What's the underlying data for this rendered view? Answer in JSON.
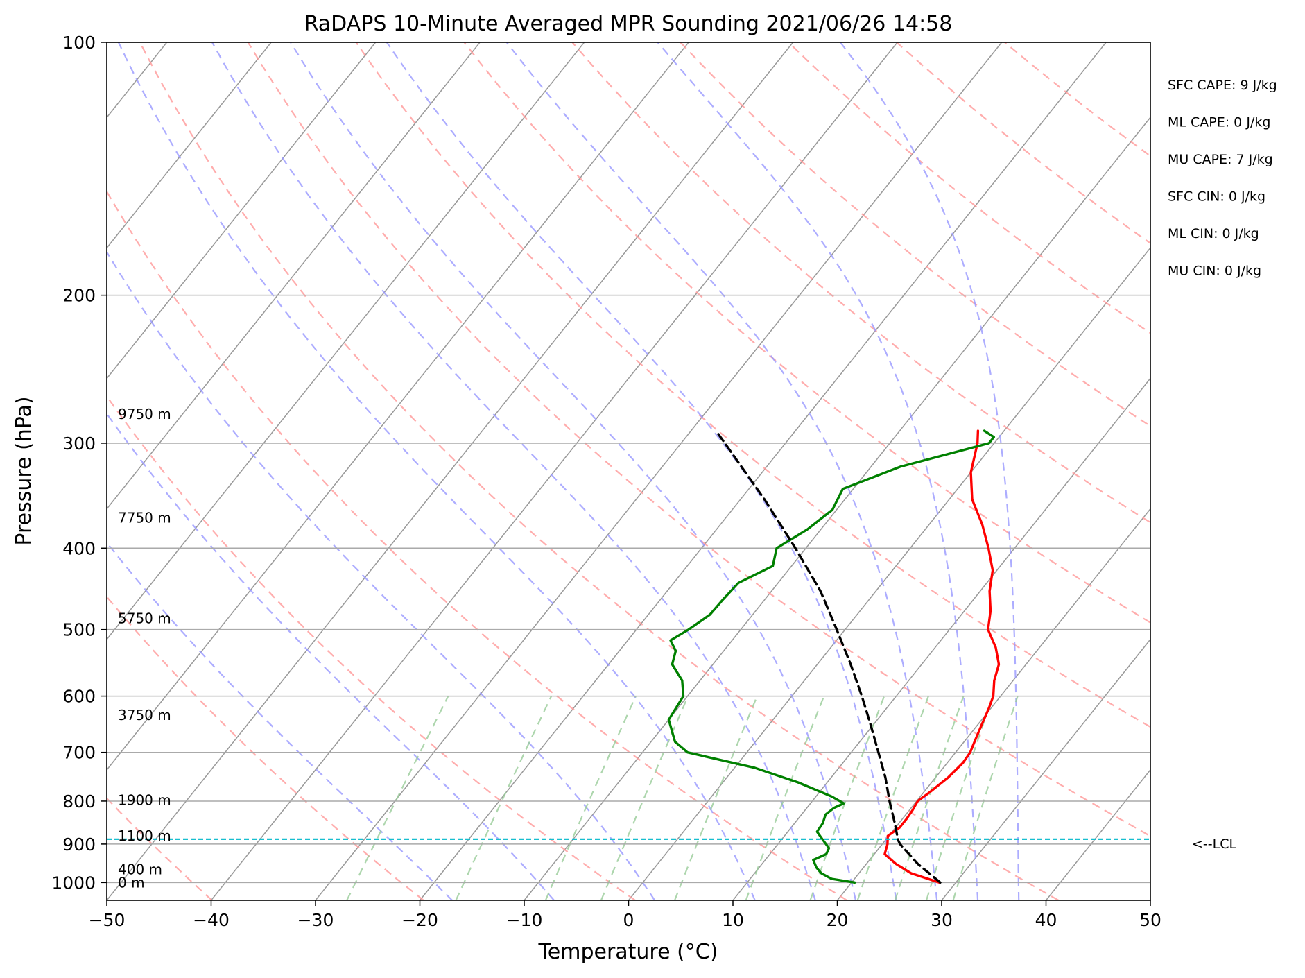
{
  "chart_data": {
    "type": "line",
    "title": "RaDAPS 10-Minute Averaged MPR Sounding 2021/06/26 14:58",
    "xlabel": "Temperature (°C)",
    "ylabel": "Pressure (hPa)",
    "xlim": [
      -50,
      50
    ],
    "ylim": [
      1050,
      100
    ],
    "y_scale": "log",
    "grid": true,
    "x_ticks": [
      "−50",
      "−40",
      "−30",
      "−20",
      "−10",
      "0",
      "10",
      "20",
      "30",
      "40",
      "50"
    ],
    "x_tick_values": [
      -50,
      -40,
      -30,
      -20,
      -10,
      0,
      10,
      20,
      30,
      40,
      50
    ],
    "y_ticks": [
      "100",
      "200",
      "300",
      "400",
      "500",
      "600",
      "700",
      "800",
      "900",
      "1000"
    ],
    "y_tick_values": [
      100,
      200,
      300,
      400,
      500,
      600,
      700,
      800,
      900,
      1000
    ],
    "series": [
      {
        "name": "",
        "role": "temperature",
        "color": "#ff0000",
        "style": "solid",
        "points": [
          [
            1000,
            28.4
          ],
          [
            975,
            25.0
          ],
          [
            950,
            22.8
          ],
          [
            925,
            21.0
          ],
          [
            900,
            20.5
          ],
          [
            880,
            19.9
          ],
          [
            860,
            20.4
          ],
          [
            840,
            20.4
          ],
          [
            820,
            20.3
          ],
          [
            800,
            20.1
          ],
          [
            780,
            20.6
          ],
          [
            750,
            21.2
          ],
          [
            720,
            21.5
          ],
          [
            700,
            21.4
          ],
          [
            680,
            21.0
          ],
          [
            650,
            20.4
          ],
          [
            620,
            19.8
          ],
          [
            600,
            19.3
          ],
          [
            575,
            18.2
          ],
          [
            550,
            17.4
          ],
          [
            525,
            15.8
          ],
          [
            500,
            13.7
          ],
          [
            475,
            12.5
          ],
          [
            450,
            10.9
          ],
          [
            425,
            9.6
          ],
          [
            400,
            7.5
          ],
          [
            375,
            5.1
          ],
          [
            350,
            2.2
          ],
          [
            325,
            0.0
          ],
          [
            300,
            -1.6
          ],
          [
            290,
            -2.5
          ]
        ]
      },
      {
        "name": "",
        "role": "dewpoint",
        "color": "#008000",
        "style": "solid",
        "points": [
          [
            1000,
            20.3
          ],
          [
            990,
            17.8
          ],
          [
            975,
            16.4
          ],
          [
            960,
            15.5
          ],
          [
            940,
            14.6
          ],
          [
            925,
            15.4
          ],
          [
            910,
            15.2
          ],
          [
            890,
            14.0
          ],
          [
            870,
            12.8
          ],
          [
            850,
            12.7
          ],
          [
            830,
            12.3
          ],
          [
            815,
            12.6
          ],
          [
            805,
            13.2
          ],
          [
            790,
            11.5
          ],
          [
            760,
            7.2
          ],
          [
            730,
            1.9
          ],
          [
            700,
            -5.7
          ],
          [
            680,
            -7.7
          ],
          [
            640,
            -10.0
          ],
          [
            600,
            -10.4
          ],
          [
            575,
            -11.7
          ],
          [
            550,
            -13.9
          ],
          [
            530,
            -14.6
          ],
          [
            515,
            -15.9
          ],
          [
            500,
            -15.0
          ],
          [
            480,
            -14.1
          ],
          [
            460,
            -14.0
          ],
          [
            440,
            -13.8
          ],
          [
            420,
            -11.8
          ],
          [
            400,
            -12.8
          ],
          [
            380,
            -11.3
          ],
          [
            360,
            -10.4
          ],
          [
            340,
            -11.0
          ],
          [
            320,
            -7.2
          ],
          [
            300,
            -0.5
          ],
          [
            295,
            -0.5
          ],
          [
            290,
            -1.9
          ]
        ]
      },
      {
        "name": "",
        "role": "parcel-profile",
        "color": "#000000",
        "style": "dashed",
        "points": [
          [
            1000,
            28.5
          ],
          [
            950,
            24.9
          ],
          [
            900,
            21.7
          ],
          [
            890,
            21.2
          ],
          [
            850,
            19.6
          ],
          [
            800,
            17.4
          ],
          [
            750,
            15.2
          ],
          [
            700,
            12.6
          ],
          [
            650,
            9.8
          ],
          [
            600,
            6.7
          ],
          [
            550,
            3.2
          ],
          [
            500,
            -0.8
          ],
          [
            450,
            -5.3
          ],
          [
            400,
            -11.0
          ],
          [
            350,
            -17.7
          ],
          [
            300,
            -25.8
          ],
          [
            290,
            -27.6
          ]
        ]
      }
    ],
    "reference_lines": {
      "dry_adiabats_theta_K": [
        210,
        230,
        250,
        270,
        290,
        310,
        330,
        350,
        370,
        390,
        410,
        430,
        450,
        470
      ],
      "moist_adiabats_theta_w_C": [
        -20,
        -10,
        0,
        10,
        16,
        20,
        24,
        28,
        32,
        36
      ],
      "mixing_ratio_lines_g_per_kg": [
        0.4,
        1,
        2,
        3,
        5,
        8,
        12,
        16,
        20,
        24,
        28
      ],
      "dry_adiabat_color": "#ff9999",
      "moist_adiabat_color": "#9999ff",
      "mixing_ratio_color": "#99cc99",
      "isotherm_color": "#999999"
    },
    "lcl": {
      "pressure": 888,
      "label": "<--LCL",
      "color": "#17becf"
    },
    "height_labels": [
      {
        "pressure": 277,
        "label": "9750 m"
      },
      {
        "pressure": 368,
        "label": "7750 m"
      },
      {
        "pressure": 485,
        "label": "5750 m"
      },
      {
        "pressure": 632,
        "label": "3750 m"
      },
      {
        "pressure": 798,
        "label": "1900 m"
      },
      {
        "pressure": 880,
        "label": "1100 m"
      },
      {
        "pressure": 965,
        "label": "400 m"
      },
      {
        "pressure": 1000,
        "label": "0 m"
      }
    ],
    "indices": [
      "SFC CAPE: 9 J/kg",
      "ML CAPE: 0 J/kg",
      "MU CAPE: 7 J/kg",
      "SFC CIN: 0 J/kg",
      "ML CIN: 0 J/kg",
      "MU CIN: 0 J/kg"
    ]
  }
}
